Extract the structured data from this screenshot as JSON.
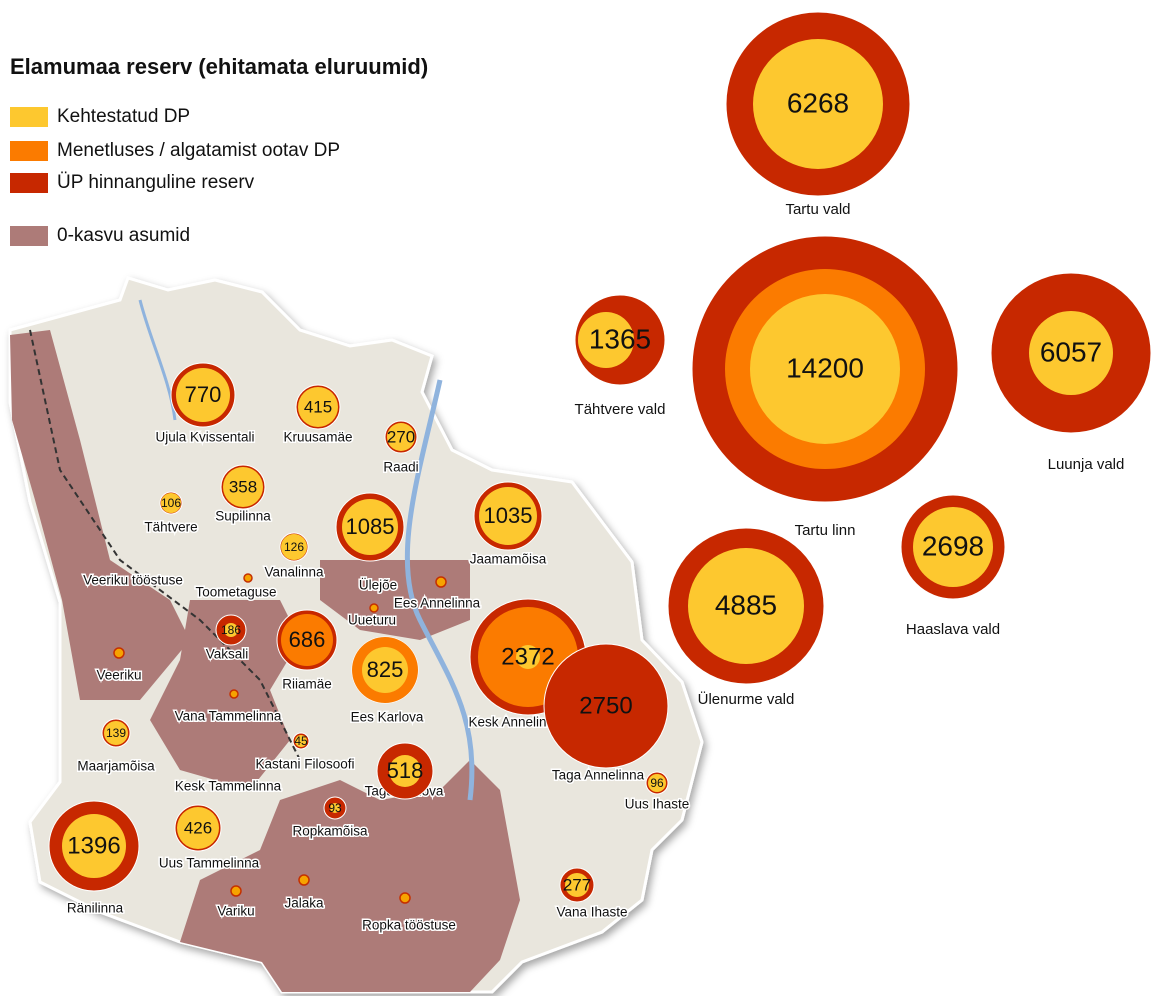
{
  "title": "Elamumaa reserv (ehitamata eluruumid)",
  "legend": [
    "Kehtestatud DP",
    "Menetluses / algatamist ootav DP",
    "ÜP hinnanguline reserv",
    "0-kasvu asumid"
  ],
  "map_labels": [
    "Ujula Kvissentali",
    "Kruusamäe",
    "Raadi",
    "Tähtvere",
    "Supilinna",
    "Vanalinna",
    "Jaamamõisa",
    "Veeriku tööstuse",
    "Toometaguse",
    "Ülejõe",
    "Ees Annelinna",
    "Uueturu",
    "Vaksali",
    "Riiamäe",
    "Veeriku",
    "Ees Karlova",
    "Kesk Annelinna",
    "Vana Tammelinna",
    "Maarjamõisa",
    "Kastani Filosoofi",
    "Kesk Tammelinna",
    "Taga Karlova",
    "Taga Annelinna",
    "Uus Ihaste",
    "Ropkamõisa",
    "Uus Tammelinna",
    "Ränilinna",
    "Variku",
    "Jalaka",
    "Ropka tööstuse",
    "Vana Ihaste"
  ],
  "map_bubbles": [
    770,
    415,
    270,
    106,
    358,
    1085,
    1035,
    126,
    186,
    686,
    825,
    2372,
    2750,
    139,
    45,
    518,
    93,
    426,
    1396,
    96,
    277
  ],
  "regions": [
    {
      "name": "Tartu vald",
      "value": 6268
    },
    {
      "name": "Tähtvere vald",
      "value": 1365
    },
    {
      "name": "Tartu linn",
      "value": 14200
    },
    {
      "name": "Luunja vald",
      "value": 6057
    },
    {
      "name": "Haaslava vald",
      "value": 2698
    },
    {
      "name": "Ülenurme vald",
      "value": 4885
    }
  ]
}
